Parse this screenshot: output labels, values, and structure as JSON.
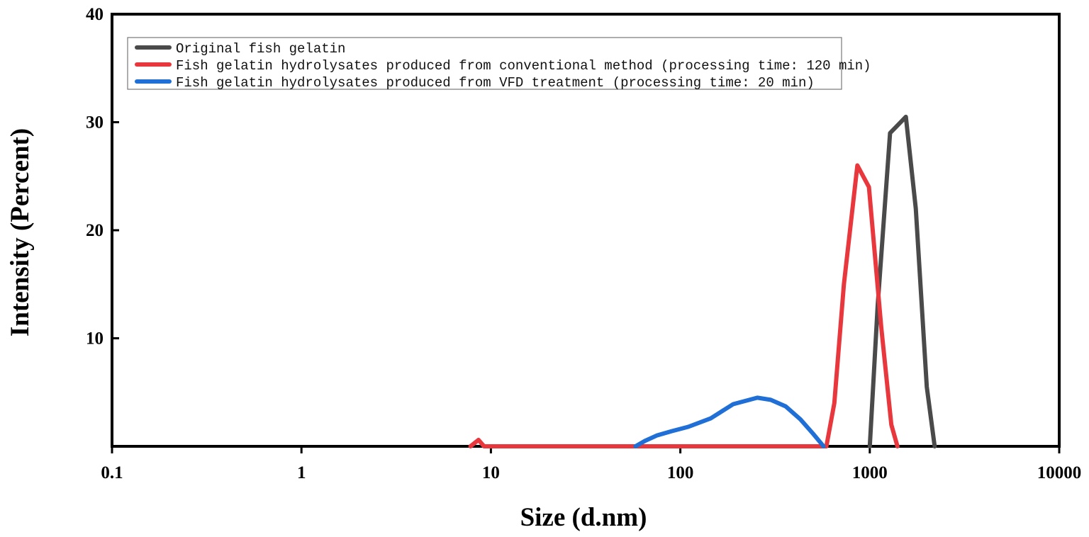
{
  "chart_data": {
    "type": "line",
    "xlabel": "Size (d.nm)",
    "ylabel": "Intensity (Percent)",
    "x_scale": "log",
    "xlim": [
      0.1,
      10000
    ],
    "ylim": [
      0,
      40
    ],
    "x_ticks": [
      0.1,
      1,
      10,
      100,
      1000,
      10000
    ],
    "x_tick_labels": [
      "0.1",
      "1",
      "10",
      "100",
      "1000",
      "10000"
    ],
    "y_ticks": [
      10,
      20,
      30,
      40
    ],
    "y_tick_labels": [
      "10",
      "20",
      "30",
      "40"
    ],
    "grid": false,
    "legend_position": "top-left",
    "series": [
      {
        "name": "Original fish gelatin",
        "color": "#4a4a4a",
        "x": [
          1000,
          1100,
          1280,
          1550,
          1750,
          2000,
          2200
        ],
        "y": [
          0,
          13,
          29,
          30.5,
          22,
          5.5,
          0
        ]
      },
      {
        "name": "Fish gelatin hydrolysates produced from conventional method (processing time: 120 min)",
        "color": "#e8383d",
        "x": [
          7.8,
          8.6,
          9.2,
          590,
          650,
          730,
          860,
          990,
          1150,
          1300,
          1400
        ],
        "y": [
          0,
          0.6,
          0,
          0,
          4,
          15,
          26,
          24,
          11,
          2,
          0
        ]
      },
      {
        "name": "Fish gelatin hydrolysates produced from VFD treatment (processing time: 20 min)",
        "color": "#1f6fd6",
        "x": [
          58,
          65,
          75,
          90,
          110,
          145,
          190,
          255,
          300,
          360,
          430,
          500,
          570
        ],
        "y": [
          0,
          0.5,
          1,
          1.4,
          1.8,
          2.6,
          3.9,
          4.5,
          4.3,
          3.7,
          2.5,
          1.2,
          0
        ]
      }
    ]
  }
}
